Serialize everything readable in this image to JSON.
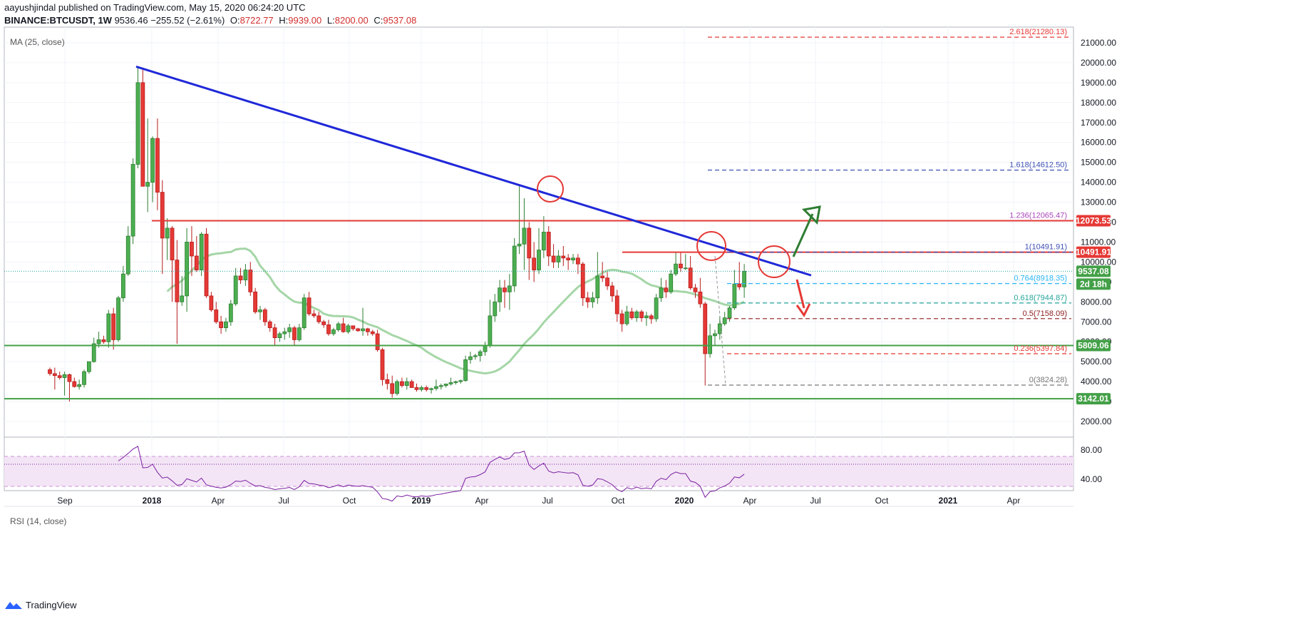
{
  "header": {
    "line1": "aayushjindal published on TradingView.com, May 15, 2020 06:24:20 UTC",
    "symbol": "BINANCE:BTCUSDT, 1W",
    "last": "9536.46",
    "change": "−255.52 (−2.61%)",
    "o_label": "O:",
    "o": "8722.77",
    "h_label": "H:",
    "h": "9939.00",
    "l_label": "L:",
    "l": "8200.00",
    "c_label": "C:",
    "c": "9537.08"
  },
  "indicators": {
    "ma": "MA (25, close)",
    "rsi": "RSI (14, close)"
  },
  "footer": {
    "brand": "TradingView"
  },
  "colors": {
    "up": "#26a69a",
    "upFill": "#4caf50",
    "down": "#ef5350",
    "downFill": "#e53935",
    "trend": "#1f28d8",
    "resist": "#e53935",
    "support": "#43a047",
    "ma": "#a5d6a7",
    "rsi": "#7b1fa2",
    "fib_red": "#e53935",
    "fib_blue": "#3f51b5",
    "fib_purple": "#ab47bc"
  },
  "price_axis": {
    "ticks": [
      "21000.00",
      "20000.00",
      "19000.00",
      "18000.00",
      "17000.00",
      "16000.00",
      "15000.00",
      "14000.00",
      "13000.00",
      "12000.00",
      "11000.00",
      "10000.00",
      "9000.00",
      "8000.00",
      "7000.00",
      "6000.00",
      "5000.00",
      "4000.00",
      "3000.00",
      "2000.00"
    ],
    "badges": [
      {
        "text": "12073.53",
        "color": "#e53935"
      },
      {
        "text": "10491.91",
        "color": "#e53935"
      },
      {
        "text": "9537.08",
        "color": "#43a047"
      },
      {
        "text": "2d 18h",
        "color": "#43a047"
      },
      {
        "text": "5809.06",
        "color": "#43a047"
      },
      {
        "text": "3142.01",
        "color": "#43a047"
      }
    ]
  },
  "rsi_axis": {
    "ticks": [
      "80.00",
      "40.00"
    ]
  },
  "time_axis": {
    "labels": [
      "Sep",
      "2018",
      "Apr",
      "Jul",
      "Oct",
      "2019",
      "Apr",
      "Jul",
      "Oct",
      "2020",
      "Apr",
      "Jul",
      "Oct",
      "2021",
      "Apr"
    ]
  },
  "fib_levels": [
    {
      "text": "2.618(21280.13)",
      "color": "#e53935"
    },
    {
      "text": "1.618(14612.50)",
      "color": "#3f51b5"
    },
    {
      "text": "1.236(12065.47)",
      "color": "#ab47bc"
    },
    {
      "text": "1(10491.91)",
      "color": "#3f51b5"
    },
    {
      "text": "0.764(8918.35)",
      "color": "#29b6f6"
    },
    {
      "text": "0.618(7944.87)",
      "color": "#26a69a"
    },
    {
      "text": "0.5(7158.09)",
      "color": "#8d1c1c"
    },
    {
      "text": "0.236(5397.84)",
      "color": "#e53935"
    },
    {
      "text": "0(3824.28)",
      "color": "#777777"
    }
  ],
  "chart_data": {
    "type": "candlestick",
    "symbol": "BINANCE:BTCUSDT",
    "interval": "1W",
    "ylim": [
      1200,
      22200
    ],
    "horizontal_levels": [
      12073.53,
      10491.91,
      5809.06,
      3142.01
    ],
    "trendline": {
      "from": {
        "date": "2017-12-18",
        "price": 19800
      },
      "to": {
        "date": "2020-06-15",
        "price": 9500
      }
    },
    "ohlc": [
      [
        4600,
        4700,
        4300,
        4400
      ],
      [
        4400,
        4700,
        3600,
        4300
      ],
      [
        4300,
        4500,
        4100,
        4200
      ],
      [
        4200,
        4500,
        3300,
        4350
      ],
      [
        4350,
        4400,
        3000,
        4000
      ],
      [
        4000,
        4200,
        3700,
        3750
      ],
      [
        3750,
        4100,
        3600,
        3850
      ],
      [
        3850,
        4600,
        3700,
        4500
      ],
      [
        4500,
        5000,
        4400,
        5000
      ],
      [
        5000,
        6200,
        4950,
        5900
      ],
      [
        5900,
        6500,
        5700,
        6100
      ],
      [
        6100,
        6300,
        5900,
        6000
      ],
      [
        6000,
        7600,
        5700,
        7400
      ],
      [
        7400,
        7700,
        5600,
        6100
      ],
      [
        6100,
        8300,
        6000,
        8200
      ],
      [
        8200,
        9800,
        8000,
        9400
      ],
      [
        9400,
        11800,
        9300,
        11300
      ],
      [
        11300,
        15200,
        10900,
        14900
      ],
      [
        14900,
        19800,
        14700,
        19000
      ],
      [
        19000,
        19700,
        13800,
        13800
      ],
      [
        13800,
        17200,
        12500,
        14000
      ],
      [
        14000,
        16300,
        13000,
        16200
      ],
      [
        16200,
        17200,
        12600,
        13500
      ],
      [
        13500,
        14100,
        9400,
        11200
      ],
      [
        11200,
        12200,
        10100,
        11700
      ],
      [
        11700,
        11800,
        8000,
        10100
      ],
      [
        10100,
        11100,
        5900,
        8000
      ],
      [
        8000,
        9300,
        7800,
        8300
      ],
      [
        8300,
        11700,
        7500,
        11000
      ],
      [
        11000,
        11800,
        9300,
        10300
      ],
      [
        10300,
        11300,
        9500,
        9600
      ],
      [
        9600,
        11500,
        9300,
        11400
      ],
      [
        11400,
        11700,
        8200,
        8300
      ],
      [
        8300,
        8500,
        7500,
        7600
      ],
      [
        7600,
        8000,
        6900,
        7000
      ],
      [
        7000,
        7300,
        6400,
        6700
      ],
      [
        6700,
        7200,
        6500,
        7000
      ],
      [
        7000,
        8100,
        6800,
        7900
      ],
      [
        7900,
        9700,
        7800,
        9300
      ],
      [
        9300,
        9700,
        8900,
        9100
      ],
      [
        9100,
        9900,
        8800,
        9600
      ],
      [
        9600,
        10000,
        8300,
        8500
      ],
      [
        8500,
        8700,
        7400,
        7500
      ],
      [
        7500,
        7800,
        7100,
        7600
      ],
      [
        7600,
        7700,
        6800,
        7000
      ],
      [
        7000,
        7100,
        6500,
        6700
      ],
      [
        6700,
        6900,
        5800,
        6200
      ],
      [
        6200,
        6500,
        6000,
        6400
      ],
      [
        6400,
        6700,
        6100,
        6500
      ],
      [
        6500,
        6900,
        6200,
        6700
      ],
      [
        6700,
        6800,
        5800,
        6100
      ],
      [
        6100,
        6900,
        6000,
        6700
      ],
      [
        6700,
        8400,
        6600,
        8200
      ],
      [
        8200,
        8500,
        7300,
        7400
      ],
      [
        7400,
        7600,
        7200,
        7300
      ],
      [
        7300,
        7500,
        6900,
        7000
      ],
      [
        7000,
        7100,
        6700,
        6850
      ],
      [
        6850,
        7100,
        6300,
        6400
      ],
      [
        6400,
        6700,
        6300,
        6600
      ],
      [
        6600,
        7000,
        6500,
        6900
      ],
      [
        6900,
        7200,
        6450,
        6500
      ],
      [
        6500,
        6900,
        6400,
        6800
      ],
      [
        6800,
        6800,
        6550,
        6650
      ],
      [
        6650,
        6700,
        6500,
        6550
      ],
      [
        6550,
        7700,
        6300,
        6650
      ],
      [
        6650,
        6700,
        6300,
        6500
      ],
      [
        6500,
        6600,
        6300,
        6400
      ],
      [
        6400,
        6600,
        5500,
        5600
      ],
      [
        5600,
        5700,
        3800,
        4100
      ],
      [
        4100,
        4400,
        3600,
        3900
      ],
      [
        3900,
        4300,
        3200,
        3400
      ],
      [
        3400,
        4100,
        3300,
        4000
      ],
      [
        4000,
        4200,
        3700,
        3800
      ],
      [
        3800,
        4200,
        3600,
        4000
      ],
      [
        4000,
        4100,
        3700,
        3700
      ],
      [
        3700,
        3900,
        3500,
        3600
      ],
      [
        3600,
        3800,
        3500,
        3700
      ],
      [
        3700,
        3800,
        3500,
        3600
      ],
      [
        3600,
        3700,
        3400,
        3650
      ],
      [
        3650,
        4100,
        3550,
        3750
      ],
      [
        3750,
        3900,
        3600,
        3800
      ],
      [
        3800,
        3900,
        3700,
        3880
      ],
      [
        3880,
        4200,
        3800,
        3950
      ],
      [
        3950,
        4050,
        3850,
        4000
      ],
      [
        4000,
        4100,
        3900,
        4050
      ],
      [
        4050,
        5300,
        4000,
        5100
      ],
      [
        5100,
        5500,
        4900,
        5250
      ],
      [
        5250,
        5400,
        5100,
        5300
      ],
      [
        5300,
        5600,
        5000,
        5500
      ],
      [
        5500,
        6000,
        5300,
        5800
      ],
      [
        5800,
        8100,
        5700,
        7300
      ],
      [
        7300,
        8400,
        7000,
        8000
      ],
      [
        8000,
        9100,
        7500,
        8700
      ],
      [
        8700,
        9100,
        7700,
        8500
      ],
      [
        8500,
        9400,
        7600,
        8800
      ],
      [
        8800,
        11200,
        8500,
        10800
      ],
      [
        10800,
        13900,
        10400,
        10900
      ],
      [
        10900,
        13200,
        9600,
        11700
      ],
      [
        11700,
        12000,
        9100,
        10200
      ],
      [
        10200,
        11000,
        9000,
        9600
      ],
      [
        9600,
        11700,
        9400,
        10600
      ],
      [
        10600,
        12300,
        10200,
        11500
      ],
      [
        11500,
        11800,
        9800,
        10300
      ],
      [
        10300,
        10900,
        9700,
        10000
      ],
      [
        10000,
        10600,
        9700,
        10300
      ],
      [
        10300,
        10800,
        9800,
        10200
      ],
      [
        10200,
        10400,
        9600,
        10100
      ],
      [
        10100,
        10400,
        9900,
        10200
      ],
      [
        10200,
        10400,
        9400,
        9900
      ],
      [
        9900,
        10000,
        7800,
        8200
      ],
      [
        8200,
        8500,
        7700,
        8000
      ],
      [
        8000,
        8500,
        7700,
        8200
      ],
      [
        8200,
        10500,
        7900,
        9300
      ],
      [
        9300,
        10000,
        9000,
        9200
      ],
      [
        9200,
        9500,
        8600,
        8800
      ],
      [
        8800,
        9000,
        8000,
        8300
      ],
      [
        8300,
        8600,
        7000,
        7400
      ],
      [
        7400,
        7600,
        6500,
        6900
      ],
      [
        6900,
        7800,
        6800,
        7500
      ],
      [
        7500,
        7700,
        7100,
        7200
      ],
      [
        7200,
        7600,
        7000,
        7500
      ],
      [
        7500,
        7600,
        7000,
        7200
      ],
      [
        7200,
        7500,
        6800,
        7300
      ],
      [
        7300,
        7400,
        6900,
        7150
      ],
      [
        7150,
        8400,
        7000,
        8200
      ],
      [
        8200,
        9200,
        8000,
        8700
      ],
      [
        8700,
        9100,
        8200,
        8500
      ],
      [
        8500,
        9600,
        8400,
        9400
      ],
      [
        9400,
        10500,
        9300,
        9900
      ],
      [
        9900,
        10500,
        9500,
        9700
      ],
      [
        9700,
        10400,
        9600,
        9700
      ],
      [
        9700,
        10300,
        8600,
        8700
      ],
      [
        8700,
        8900,
        8200,
        8500
      ],
      [
        8500,
        9200,
        7700,
        7900
      ],
      [
        7900,
        8000,
        3800,
        5400
      ],
      [
        5400,
        6900,
        5200,
        6300
      ],
      [
        6300,
        6600,
        5800,
        6400
      ],
      [
        6400,
        7300,
        6100,
        6900
      ],
      [
        6900,
        7500,
        6800,
        7200
      ],
      [
        7200,
        7800,
        7000,
        7700
      ],
      [
        7700,
        9600,
        7600,
        8900
      ],
      [
        8900,
        10000,
        8600,
        8750
      ],
      [
        8750,
        9900,
        8200,
        9537
      ]
    ]
  }
}
